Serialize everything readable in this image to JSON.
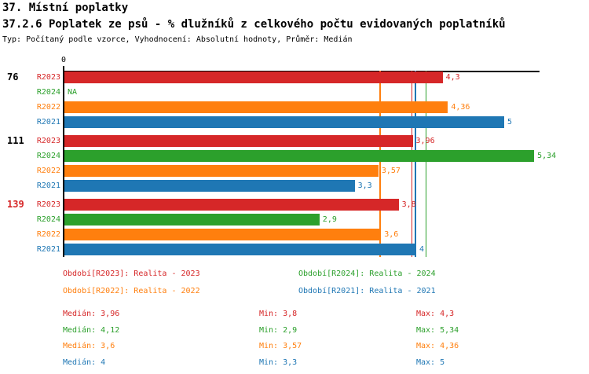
{
  "header": {
    "title": "37. Místní poplatky",
    "subtitle": "37.2.6 Poplatek ze psů - % dlužníků z celkového počtu evidovaných poplatníků",
    "meta": "Typ: Počítaný podle vzorce, Vyhodnocení: Absolutní hodnoty, Průměr: Medián"
  },
  "colors": {
    "R2023": "#d62728",
    "R2024": "#2ca02c",
    "R2022": "#ff7f0e",
    "R2021": "#1f77b4",
    "axis": "#000000",
    "group_label_default": "#000000",
    "group_label_alert": "#d62728"
  },
  "chart_data": {
    "type": "bar",
    "orientation": "horizontal",
    "title": "37.2.6 Poplatek ze psů - % dlužníků z celkového počtu evidovaných poplatníků",
    "x_axis": {
      "min": 0,
      "max": 5.41,
      "ticks": [
        {
          "value": 0,
          "label": "0"
        }
      ],
      "grid": false
    },
    "series_order": [
      "R2023",
      "R2024",
      "R2022",
      "R2021"
    ],
    "na_text": "NA",
    "groups": [
      {
        "label": "76",
        "label_style": "default",
        "bars": [
          {
            "series": "R2023",
            "value": 4.3,
            "label": "4,3"
          },
          {
            "series": "R2024",
            "value": null,
            "label": "NA"
          },
          {
            "series": "R2022",
            "value": 4.36,
            "label": "4,36"
          },
          {
            "series": "R2021",
            "value": 5,
            "label": "5"
          }
        ]
      },
      {
        "label": "111",
        "label_style": "default",
        "bars": [
          {
            "series": "R2023",
            "value": 3.96,
            "label": "3,96"
          },
          {
            "series": "R2024",
            "value": 5.34,
            "label": "5,34"
          },
          {
            "series": "R2022",
            "value": 3.57,
            "label": "3,57"
          },
          {
            "series": "R2021",
            "value": 3.3,
            "label": "3,3"
          }
        ]
      },
      {
        "label": "139",
        "label_style": "alert",
        "bars": [
          {
            "series": "R2023",
            "value": 3.8,
            "label": "3,8"
          },
          {
            "series": "R2024",
            "value": 2.9,
            "label": "2,9"
          },
          {
            "series": "R2022",
            "value": 3.6,
            "label": "3,6"
          },
          {
            "series": "R2021",
            "value": 4,
            "label": "4"
          }
        ]
      }
    ],
    "median_lines": [
      {
        "series": "R2022",
        "value": 3.6
      },
      {
        "series": "R2023",
        "value": 3.96
      },
      {
        "series": "R2021",
        "value": 4
      },
      {
        "series": "R2024",
        "value": 4.12
      }
    ]
  },
  "legend": {
    "items": [
      {
        "series": "R2023",
        "label": "Období[R2023]",
        "value": "Realita - 2023",
        "row": 0,
        "col": 0
      },
      {
        "series": "R2024",
        "label": "Období[R2024]",
        "value": "Realita - 2024",
        "row": 0,
        "col": 1
      },
      {
        "series": "R2022",
        "label": "Období[R2022]",
        "value": "Realita - 2022",
        "row": 1,
        "col": 0
      },
      {
        "series": "R2021",
        "label": "Období[R2021]",
        "value": "Realita - 2021",
        "row": 1,
        "col": 1
      }
    ]
  },
  "stats": {
    "labels": {
      "median": "Medián",
      "min": "Min",
      "max": "Max"
    },
    "rows": [
      {
        "series": "R2023",
        "median": "3,96",
        "min": "3,8",
        "max": "4,3"
      },
      {
        "series": "R2024",
        "median": "4,12",
        "min": "2,9",
        "max": "5,34"
      },
      {
        "series": "R2022",
        "median": "3,6",
        "min": "3,57",
        "max": "4,36"
      },
      {
        "series": "R2021",
        "median": "4",
        "min": "3,3",
        "max": "5"
      }
    ]
  }
}
